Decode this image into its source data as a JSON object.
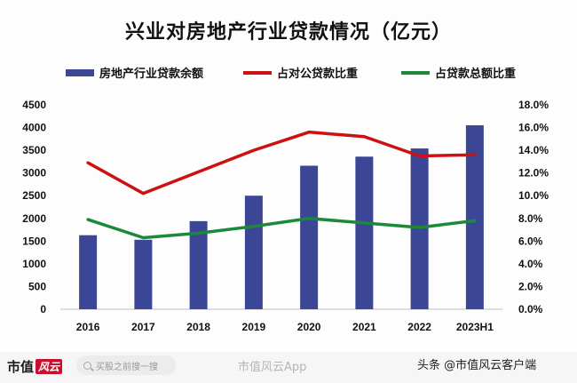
{
  "chart_data": {
    "type": "bar",
    "title": "兴业对房地产行业贷款情况（亿元）",
    "categories": [
      "2016",
      "2017",
      "2018",
      "2019",
      "2020",
      "2021",
      "2022",
      "2023H1"
    ],
    "series": [
      {
        "name": "房地产行业贷款余额",
        "type": "bar",
        "axis": "left",
        "color": "#3c4696",
        "values": [
          1630,
          1530,
          1940,
          2500,
          3160,
          3360,
          3540,
          4050
        ]
      },
      {
        "name": "占对公贷款比重",
        "type": "line",
        "axis": "right",
        "color": "#cc1111",
        "values": [
          12.9,
          10.2,
          12.1,
          14.0,
          15.6,
          15.2,
          13.5,
          13.6
        ]
      },
      {
        "name": "占贷款总额比重",
        "type": "line",
        "axis": "right",
        "color": "#1a8a3a",
        "values": [
          7.9,
          6.3,
          6.7,
          7.3,
          8.0,
          7.6,
          7.2,
          7.8
        ]
      }
    ],
    "y_left": {
      "min": 0,
      "max": 4500,
      "ticks": [
        "0",
        "500",
        "1000",
        "1500",
        "2000",
        "2500",
        "3000",
        "3500",
        "4000",
        "4500"
      ]
    },
    "y_right": {
      "min": 0,
      "max": 18,
      "ticks": [
        "0.0%",
        "2.0%",
        "4.0%",
        "6.0%",
        "8.0%",
        "10.0%",
        "12.0%",
        "14.0%",
        "16.0%",
        "18.0%"
      ]
    },
    "legend_position": "top",
    "grid": false
  },
  "footer": {
    "brand": "市值",
    "brand_mark": "风云",
    "search_placeholder": "买股之前搜一搜",
    "weibo_tag": "市值风云App",
    "toutiao_tag": "头条 @市值风云客户端"
  }
}
